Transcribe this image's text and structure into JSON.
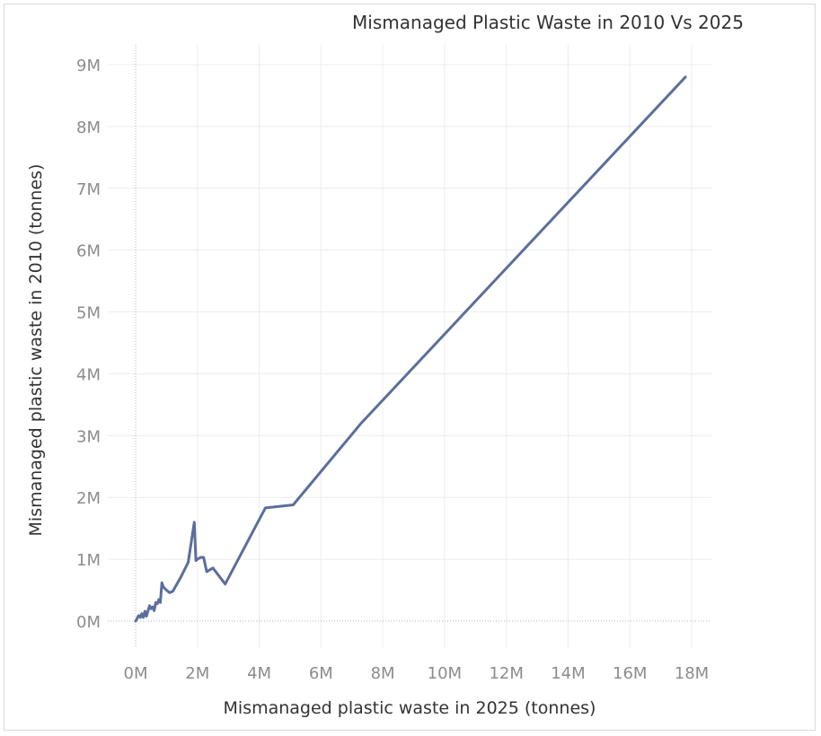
{
  "chart_data": {
    "type": "line",
    "title": "Mismanaged Plastic Waste in 2010 Vs 2025",
    "xlabel": "Mismanaged plastic waste in 2025 (tonnes)",
    "ylabel": "Mismanaged plastic waste in 2010 (tonnes)",
    "xlim": [
      0,
      18500000
    ],
    "ylim": [
      0,
      9300000
    ],
    "x_ticks": [
      0,
      2000000,
      4000000,
      6000000,
      8000000,
      10000000,
      12000000,
      14000000,
      16000000,
      18000000
    ],
    "x_tick_labels": [
      "0M",
      "2M",
      "4M",
      "6M",
      "8M",
      "10M",
      "12M",
      "14M",
      "16M",
      "18M"
    ],
    "y_ticks": [
      0,
      1000000,
      2000000,
      3000000,
      4000000,
      5000000,
      6000000,
      7000000,
      8000000,
      9000000
    ],
    "y_tick_labels": [
      "0M",
      "1M",
      "2M",
      "3M",
      "4M",
      "5M",
      "6M",
      "7M",
      "8M",
      "9M"
    ],
    "grid": true,
    "line_color": "#5b6e9b",
    "series": [
      {
        "x": [
          0,
          100000,
          150000,
          200000,
          250000,
          300000,
          350000,
          450000,
          500000,
          550000,
          600000,
          650000,
          700000,
          750000,
          800000,
          850000,
          900000,
          1000000,
          1100000,
          1200000,
          1450000,
          1700000,
          1900000,
          1950000,
          2000000,
          2100000,
          2200000,
          2300000,
          2500000,
          2900000,
          4200000,
          5100000,
          7300000,
          17800000
        ],
        "y": [
          0,
          90000,
          60000,
          120000,
          60000,
          160000,
          80000,
          250000,
          200000,
          230000,
          170000,
          300000,
          280000,
          350000,
          300000,
          620000,
          550000,
          500000,
          460000,
          480000,
          700000,
          950000,
          1600000,
          980000,
          1000000,
          1030000,
          1030000,
          800000,
          860000,
          600000,
          1830000,
          1880000,
          3200000,
          8800000
        ]
      }
    ]
  }
}
